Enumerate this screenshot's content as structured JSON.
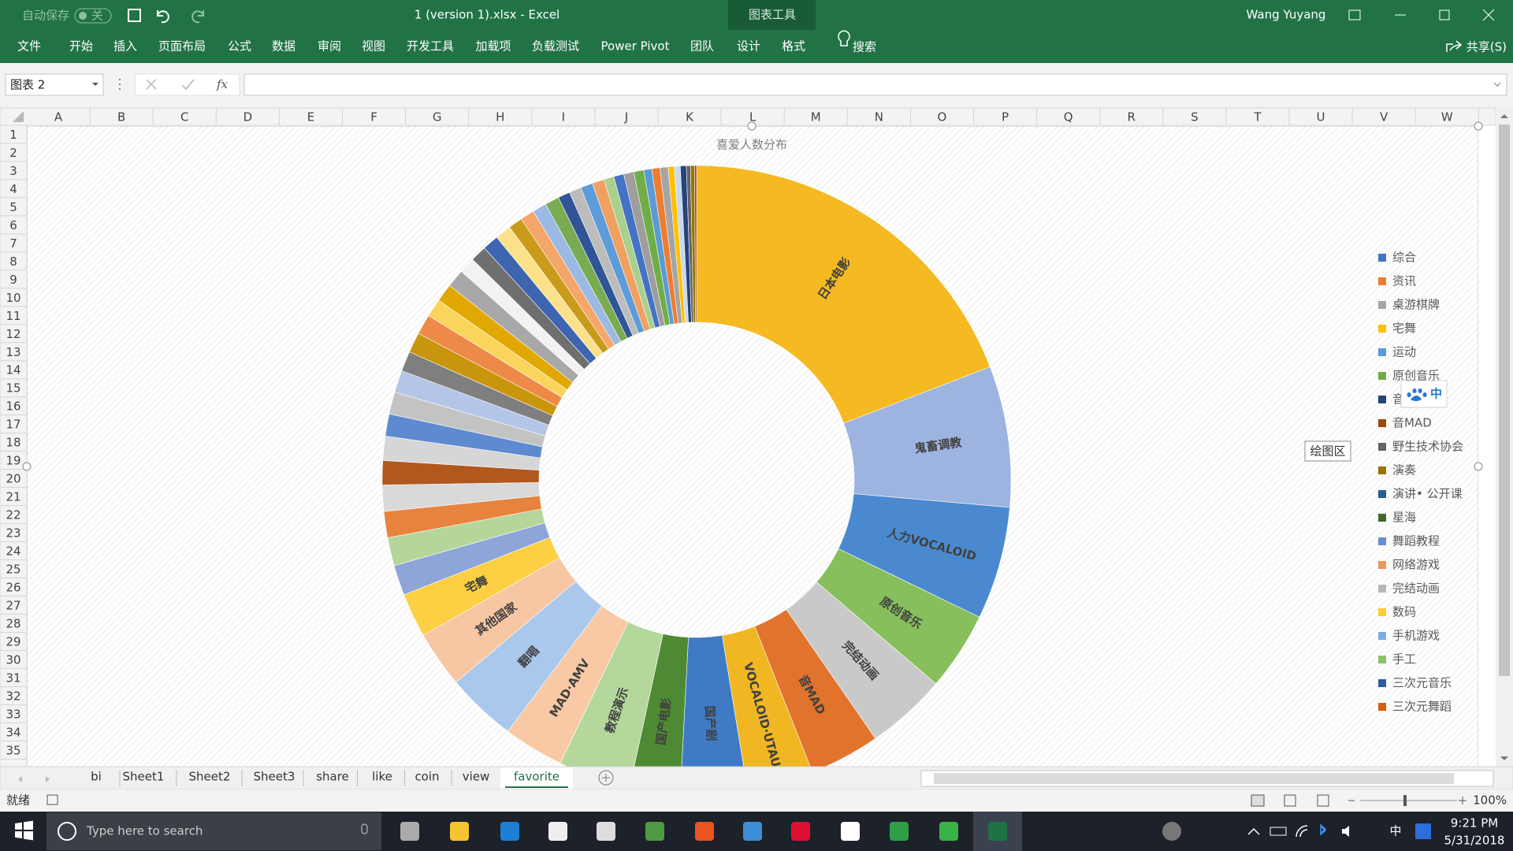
{
  "title_bar": {
    "autosave": "自动保存",
    "autosave_state": "关",
    "file": "1 (version 1).xlsx  -  Excel",
    "context": "图表工具",
    "user": "Wang Yuyang"
  },
  "ribbon_tabs": [
    "文件",
    "开始",
    "插入",
    "页面布局",
    "公式",
    "数据",
    "审阅",
    "视图",
    "开发工具",
    "加载项",
    "负载测试",
    "Power Pivot",
    "团队",
    "设计",
    "格式"
  ],
  "search": "搜索",
  "share": "共享(S)",
  "name_box": "图表 2",
  "fx": "fx",
  "columns": [
    "A",
    "B",
    "C",
    "D",
    "E",
    "F",
    "G",
    "H",
    "I",
    "J",
    "K",
    "L",
    "M",
    "N",
    "O",
    "P",
    "Q",
    "R",
    "S",
    "T",
    "U",
    "V",
    "W"
  ],
  "rows": [
    1,
    2,
    3,
    4,
    5,
    6,
    7,
    8,
    9,
    10,
    11,
    12,
    13,
    14,
    15,
    16,
    17,
    18,
    19,
    20,
    21,
    22,
    23,
    24,
    25,
    26,
    27,
    28,
    29,
    30,
    31,
    32,
    33,
    34,
    35
  ],
  "chart_data": {
    "type": "donut",
    "title": "喜爱人数分布",
    "categories": [
      "日本电影",
      "鬼畜调教",
      "人力VOCALOID",
      "原创音乐",
      "完结动画",
      "音MAD",
      "VOCALOID·UTAU",
      "国产剧",
      "国产电影",
      "教程演示",
      "MAD·AMV",
      "翻唱",
      "其他国家",
      "宅舞",
      null,
      null,
      null,
      null,
      null,
      null,
      null,
      null,
      null,
      null,
      null,
      null,
      null,
      null,
      null,
      null,
      null,
      null,
      null,
      null,
      null,
      null,
      null,
      null,
      null,
      null,
      null,
      null,
      null,
      null,
      null,
      null,
      null,
      null,
      null,
      null,
      null,
      null,
      null,
      null
    ],
    "values": [
      18.5,
      7,
      5.6,
      3.9,
      4,
      3.5,
      3.3,
      3.3,
      2.5,
      3.6,
      3,
      3.5,
      2.8,
      2.2,
      1.5,
      1.4,
      1.3,
      1.3,
      1.2,
      1.2,
      1.1,
      1.1,
      1.1,
      1.0,
      1.0,
      1.0,
      0.9,
      0.9,
      0.9,
      0.8,
      0.8,
      0.8,
      0.8,
      0.7,
      0.7,
      0.7,
      0.7,
      0.6,
      0.6,
      0.6,
      0.6,
      0.5,
      0.5,
      0.5,
      0.5,
      0.4,
      0.4,
      0.4,
      0.3,
      0.3,
      0.3,
      0.2,
      0.2,
      0.1
    ],
    "colors": [
      "#f5b921",
      "#9db3e0",
      "#4a89cf",
      "#86bf5c",
      "#c9c9c9",
      "#e1732c",
      "#f0b722",
      "#3f7bc4",
      "#4e8a33",
      "#b4d89c",
      "#f8c9a4",
      "#a9c8ec",
      "#f7c6a2",
      "#fdd043",
      "#8ea5d9",
      "#b5d69b",
      "#e8833e",
      "#d9d9d9",
      "#b1581e",
      "#d6d6d6",
      "#5e8bd0",
      "#c3c3c3",
      "#b4c6e7",
      "#7f7f7f",
      "#c9950c",
      "#ee8a48",
      "#fbd45c",
      "#e0a800",
      "#a8a8a8",
      "#f2f2f2",
      "#6f6f6f",
      "#3d65b0",
      "#fde08a",
      "#c99b1a",
      "#f4a66b",
      "#9ab9e3",
      "#7aab52",
      "#2f5597",
      "#bcbcbc",
      "#5d9cd8",
      "#f0a060",
      "#a9d08e",
      "#4472c4",
      "#9e9e9e",
      "#70ad47",
      "#5b9bd5",
      "#ed7d31",
      "#a5a5a5",
      "#ffc000",
      "#c5d9f1",
      "#264478",
      "#636363",
      "#997300",
      "#9e480e"
    ],
    "legend": {
      "names": [
        "综合",
        "资讯",
        "桌游棋牌",
        "宅舞",
        "运动",
        "原创音乐",
        "音",
        "音MAD",
        "野生技术协会",
        "演奏",
        "演讲• 公开课",
        "星海",
        "舞蹈教程",
        "网络游戏",
        "完结动画",
        "数码",
        "手机游戏",
        "手工",
        "三次元音乐",
        "三次元舞蹈"
      ],
      "colors": [
        "#4472c4",
        "#ed7d31",
        "#a5a5a5",
        "#ffc000",
        "#5b9bd5",
        "#70ad47",
        "#264478",
        "#9e480e",
        "#636363",
        "#997300",
        "#255e91",
        "#43682b",
        "#698ed0",
        "#f1975a",
        "#b7b7b7",
        "#ffcd33",
        "#7cafdd",
        "#8cc168",
        "#335aa1",
        "#d26012"
      ]
    }
  },
  "ime_float": "中",
  "tooltip": "绘图区",
  "sheet_tabs": [
    "bi",
    "Sheet1",
    "Sheet2",
    "Sheet3",
    "share",
    "like",
    "coin",
    "view",
    "favorite"
  ],
  "active_tab": 8,
  "status": "就绪",
  "zoom": "100%",
  "taskbar": {
    "search": "Type here to search",
    "ime": "中",
    "time": "9:21 PM",
    "date": "5/31/2018"
  }
}
